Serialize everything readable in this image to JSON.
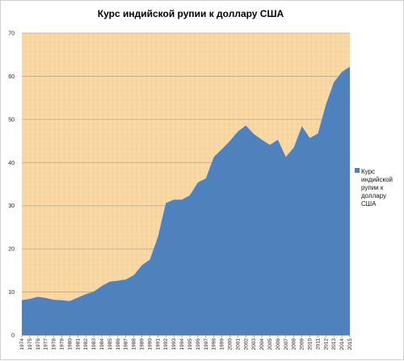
{
  "chart_data": {
    "type": "area",
    "title": "Курс индийской рупии к доллару США",
    "xlabel": "",
    "ylabel": "",
    "ylim": [
      0,
      70
    ],
    "yticks": [
      0,
      10,
      20,
      30,
      40,
      50,
      60,
      70
    ],
    "grid": true,
    "legend_position": "right",
    "categories": [
      "1974",
      "1975",
      "1976",
      "1977",
      "1978",
      "1979",
      "1980",
      "1981",
      "1982",
      "1983",
      "1984",
      "1985",
      "1986",
      "1987",
      "1988",
      "1989",
      "1990",
      "1991",
      "1992",
      "1993",
      "1994",
      "1995",
      "1996",
      "1997",
      "1998",
      "1999",
      "2000",
      "2001",
      "2002",
      "2003",
      "2004",
      "2005",
      "2006",
      "2007",
      "2008",
      "2009",
      "2010",
      "2011",
      "2012",
      "2013",
      "2014",
      "2015"
    ],
    "series": [
      {
        "name": "Курс индийской рупии к доллару США",
        "color": "#4f81bd",
        "values": [
          8.1,
          8.4,
          8.9,
          8.6,
          8.2,
          8.1,
          7.9,
          8.7,
          9.5,
          10.1,
          11.4,
          12.4,
          12.6,
          12.9,
          13.9,
          16.2,
          17.5,
          22.7,
          30.6,
          31.4,
          31.4,
          32.4,
          35.4,
          36.3,
          41.3,
          43.1,
          45.0,
          47.2,
          48.6,
          46.6,
          45.3,
          44.1,
          45.3,
          41.3,
          43.5,
          48.4,
          45.7,
          46.7,
          53.4,
          58.6,
          61.0,
          62.2
        ]
      }
    ],
    "colors": {
      "plot_background": "#fbd9a4",
      "area": "#4f81bd",
      "gridline": "#b8a88a"
    }
  }
}
